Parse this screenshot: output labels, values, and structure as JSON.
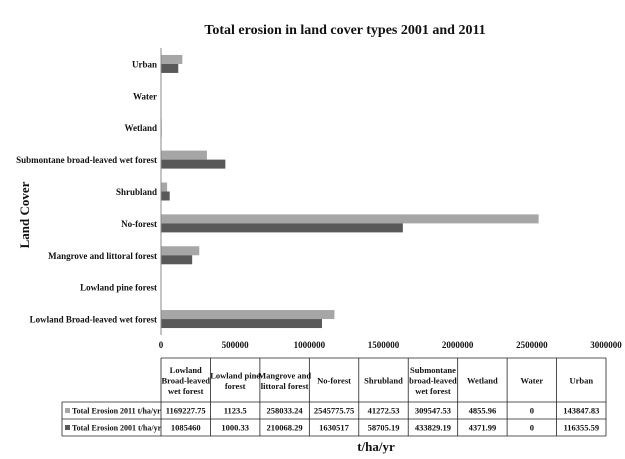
{
  "chart_data": {
    "type": "bar",
    "orientation": "horizontal",
    "title": "Total erosion in land cover types 2001 and 2011",
    "xlabel": "t/ha/yr",
    "ylabel": "Land Cover",
    "xlim": [
      0,
      3000000
    ],
    "x_ticks": [
      0,
      500000,
      1000000,
      1500000,
      2000000,
      2500000,
      3000000
    ],
    "x_tick_labels": [
      "0",
      "500000",
      "1000000",
      "1500000",
      "2000000",
      "2500000",
      "3000000"
    ],
    "categories": [
      "Lowland Broad-leaved wet forest",
      "Lowland pine forest",
      "Mangrove and littoral forest",
      "No-forest",
      "Shrubland",
      "Submontane broad-leaved wet forest",
      "Wetland",
      "Water",
      "Urban"
    ],
    "table_headers": [
      [
        "Lowland",
        "Broad-leaved",
        "wet forest"
      ],
      [
        "Lowland pine",
        "forest"
      ],
      [
        "Mangrove and",
        "littoral forest"
      ],
      [
        "No-forest"
      ],
      [
        "Shrubland"
      ],
      [
        "Submontane",
        "broad-leaved",
        "wet forest"
      ],
      [
        "Wetland"
      ],
      [
        "Water"
      ],
      [
        "Urban"
      ]
    ],
    "series": [
      {
        "name": "Total Erosion 2011 t/ha/yr",
        "color": "#a6a6a6",
        "values": [
          1169227.75,
          1123.5,
          258033.24,
          2545775.75,
          41272.53,
          309547.53,
          4855.96,
          0,
          143847.83
        ],
        "labels": [
          "1169227.75",
          "1123.5",
          "258033.24",
          "2545775.75",
          "41272.53",
          "309547.53",
          "4855.96",
          "0",
          "143847.83"
        ]
      },
      {
        "name": "Total Erosion 2001 t/ha/yr",
        "color": "#595959",
        "values": [
          1085460,
          1000.33,
          210068.29,
          1630517,
          58705.19,
          433829.19,
          4371.99,
          0,
          116355.59
        ],
        "labels": [
          "1085460",
          "1000.33",
          "210068.29",
          "1630517",
          "58705.19",
          "433829.19",
          "4371.99",
          "0",
          "116355.59"
        ]
      }
    ],
    "legend_placement": "data-table-rows",
    "grid": false
  }
}
